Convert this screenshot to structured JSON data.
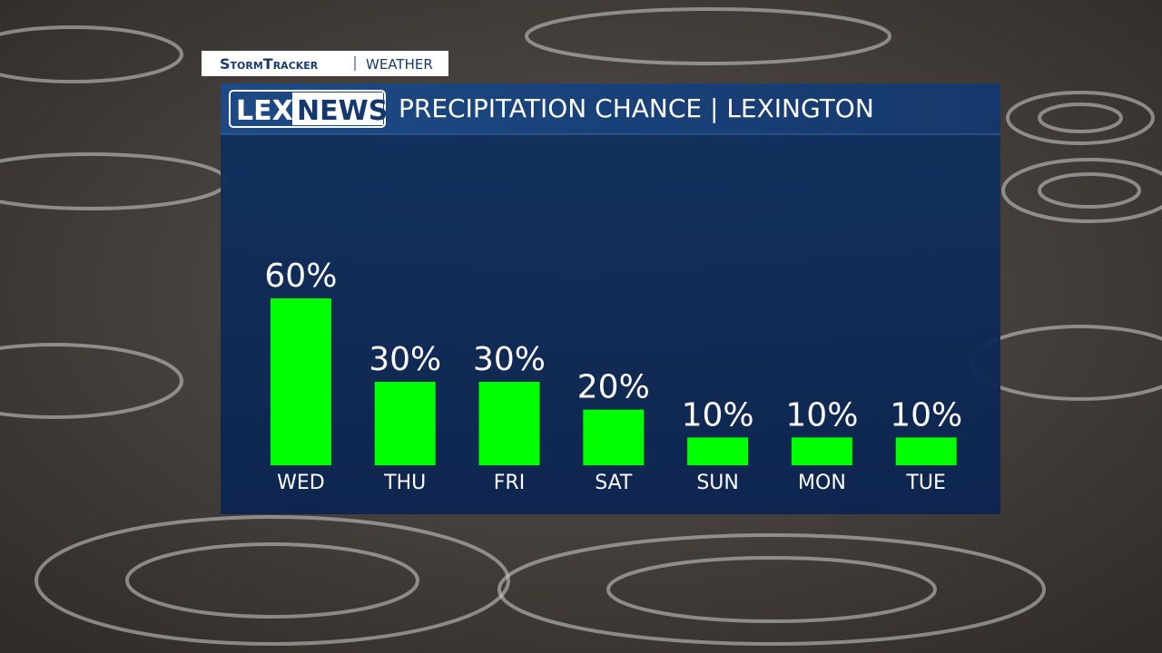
{
  "brand": {
    "stormtracker": "StormTracker",
    "section": "WEATHER",
    "logo_lex": "LEX",
    "logo_news": "NEWS"
  },
  "chart_data": {
    "type": "bar",
    "title": "PRECIPITATION CHANCE | LEXINGTON",
    "categories": [
      "WED",
      "THU",
      "FRI",
      "SAT",
      "SUN",
      "MON",
      "TUE"
    ],
    "values": [
      60,
      30,
      30,
      20,
      10,
      10,
      10
    ],
    "value_labels": [
      "60%",
      "30%",
      "30%",
      "20%",
      "10%",
      "10%",
      "10%"
    ],
    "color": "#00ff00"
  }
}
